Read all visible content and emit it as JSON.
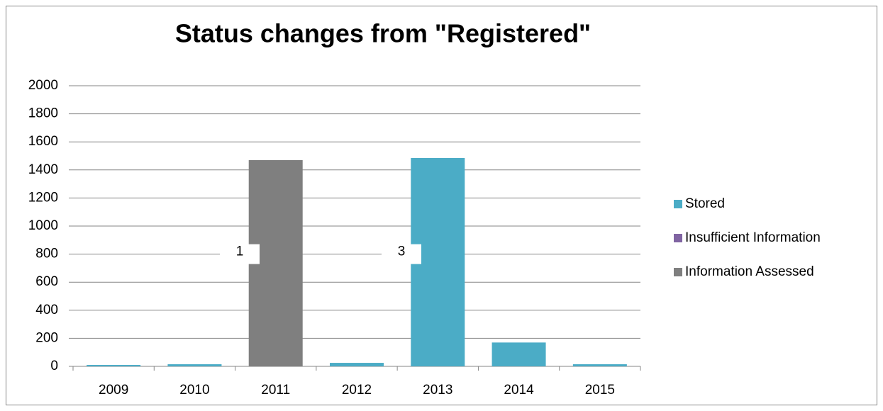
{
  "chart_data": {
    "type": "bar",
    "stacked": true,
    "title": "Status changes from \"Registered\"",
    "categories": [
      "2009",
      "2010",
      "2011",
      "2012",
      "2013",
      "2014",
      "2015"
    ],
    "series": [
      {
        "name": "Stored",
        "color": "#4bacc6",
        "values": [
          10,
          15,
          0,
          25,
          1485,
          170,
          15
        ]
      },
      {
        "name": "Insufficient Information",
        "color": "#8064a2",
        "values": [
          0,
          0,
          0,
          0,
          0,
          0,
          0
        ]
      },
      {
        "name": "Information Assessed",
        "color": "#7f7f7f",
        "values": [
          0,
          0,
          1470,
          0,
          0,
          0,
          0
        ]
      }
    ],
    "annotations": [
      "1",
      "3"
    ],
    "ylim": [
      0,
      2000
    ],
    "yticks": [
      0,
      200,
      400,
      600,
      800,
      1000,
      1200,
      1400,
      1600,
      1800,
      2000
    ],
    "grid": true,
    "legend": "right"
  }
}
